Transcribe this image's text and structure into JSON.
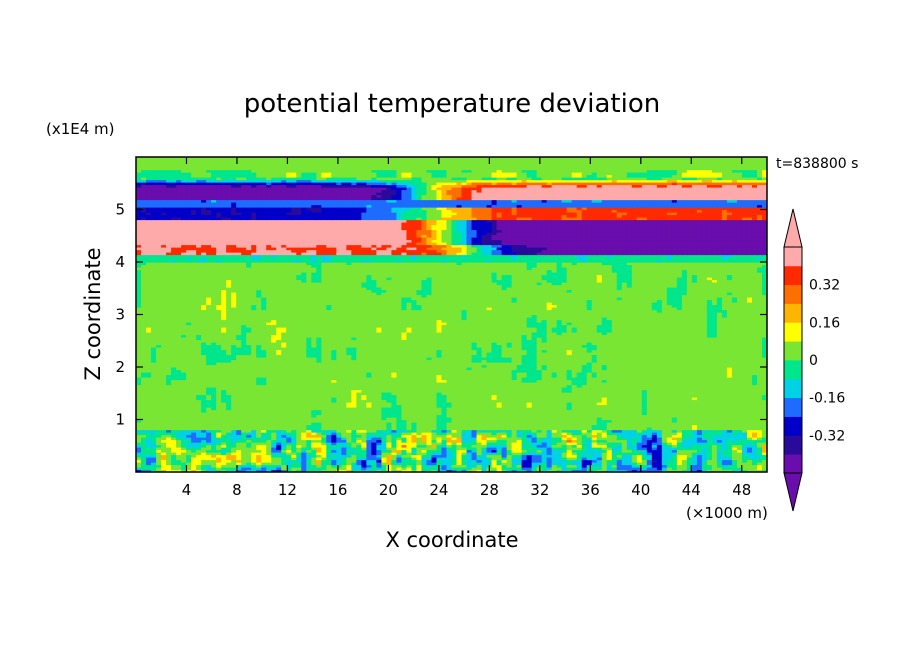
{
  "chart_data": {
    "type": "heatmap",
    "title": "potential temperature deviation",
    "xlabel": "X coordinate",
    "ylabel": "Z coordinate",
    "x_unit": "(×1000 m)",
    "y_unit": "(x1E4 m)",
    "time_label": "t=838800 s",
    "xlim": [
      0,
      50
    ],
    "ylim": [
      0,
      6
    ],
    "xticks": [
      4,
      8,
      12,
      16,
      20,
      24,
      28,
      32,
      36,
      40,
      44,
      48
    ],
    "yticks": [
      1,
      2,
      3,
      4,
      5
    ],
    "colorbar": {
      "levels": [
        -0.48,
        -0.4,
        -0.32,
        -0.24,
        -0.16,
        -0.08,
        0,
        0.08,
        0.16,
        0.24,
        0.32,
        0.4,
        0.48
      ],
      "labels": [
        "0.32",
        "0.16",
        "0",
        "-0.16",
        "-0.32"
      ],
      "label_values": [
        0.32,
        0.16,
        0,
        -0.16,
        -0.32
      ],
      "colors_low_to_high": [
        "#6a0dad",
        "#2a0a9a",
        "#0000c8",
        "#1e6cff",
        "#00d2e6",
        "#00e68c",
        "#78e632",
        "#ffff00",
        "#ffb400",
        "#ff6e00",
        "#ff2a00",
        "#ffaaaa"
      ],
      "over_color": "#ffaaaa",
      "under_color": "#6a0dad",
      "extend": "both"
    }
  }
}
